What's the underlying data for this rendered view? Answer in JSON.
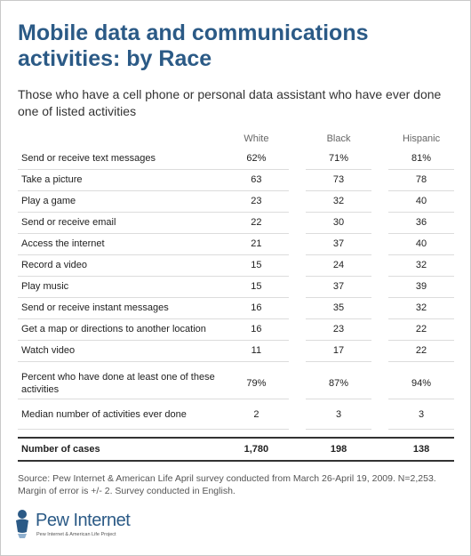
{
  "title": "Mobile data and communications activities: by Race",
  "subtitle": "Those who have a cell phone or personal data assistant who have ever done one of listed activities",
  "chart_data": {
    "type": "table",
    "columns": [
      "White",
      "Black",
      "Hispanic"
    ],
    "rows": [
      {
        "label": "Send or receive text messages",
        "values": [
          "62%",
          "71%",
          "81%"
        ]
      },
      {
        "label": "Take a picture",
        "values": [
          "63",
          "73",
          "78"
        ]
      },
      {
        "label": "Play a game",
        "values": [
          "23",
          "32",
          "40"
        ]
      },
      {
        "label": "Send or receive email",
        "values": [
          "22",
          "30",
          "36"
        ]
      },
      {
        "label": "Access the internet",
        "values": [
          "21",
          "37",
          "40"
        ]
      },
      {
        "label": "Record a video",
        "values": [
          "15",
          "24",
          "32"
        ]
      },
      {
        "label": "Play music",
        "values": [
          "15",
          "37",
          "39"
        ]
      },
      {
        "label": "Send or receive instant messages",
        "values": [
          "16",
          "35",
          "32"
        ]
      },
      {
        "label": "Get a map or directions to another location",
        "values": [
          "16",
          "23",
          "22"
        ]
      },
      {
        "label": "Watch video",
        "values": [
          "11",
          "17",
          "22"
        ]
      }
    ],
    "summary_rows": [
      {
        "label": "Percent who have done at least one of these activities",
        "values": [
          "79%",
          "87%",
          "94%"
        ]
      },
      {
        "label": "Median number of activities ever done",
        "values": [
          "2",
          "3",
          "3"
        ]
      }
    ],
    "cases_row": {
      "label": "Number of cases",
      "values": [
        "1,780",
        "198",
        "138"
      ]
    }
  },
  "source": "Source: Pew Internet & American Life April survey conducted from March 26-April 19, 2009. N=2,253. Margin of error is +/- 2. Survey conducted in English.",
  "logo": {
    "name": "Pew Internet",
    "tagline": "Pew Internet & American Life Project",
    "icon": "pew-person-icon",
    "color": "#2b5a86"
  }
}
